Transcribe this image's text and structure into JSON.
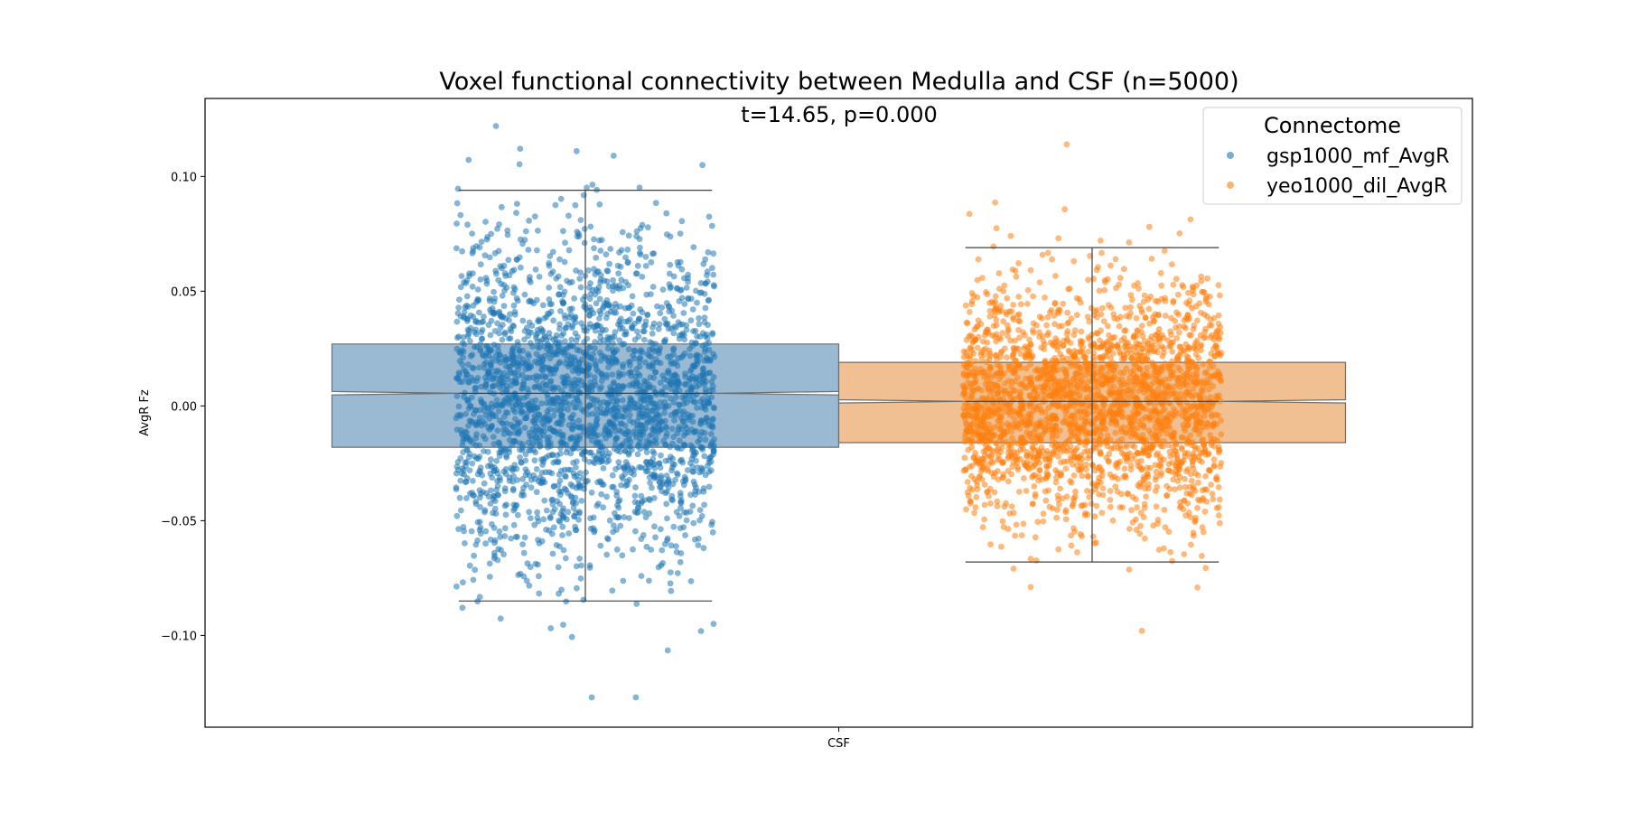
{
  "chart_data": {
    "type": "box",
    "title": "Voxel functional connectivity between Medulla and CSF (n=5000)",
    "subtitle": "t=14.65, p=0.000",
    "xlabel": "",
    "ylabel": "AvgR Fz",
    "categories": [
      "CSF"
    ],
    "ylim": [
      -0.14,
      0.134
    ],
    "yticks": [
      -0.1,
      -0.05,
      0.0,
      0.05,
      0.1
    ],
    "ytick_labels": [
      "−0.10",
      "−0.05",
      "0.00",
      "0.05",
      "0.10"
    ],
    "grid": false,
    "notched": true,
    "legend": {
      "title": "Connectome",
      "position": "top-right"
    },
    "series": [
      {
        "name": "gsp1000_mf_AvgR",
        "color": "#1f77b4",
        "box_color": "#9ab9d3",
        "stats": {
          "q1": -0.018,
          "median": 0.0055,
          "q3": 0.027,
          "notch_low": 0.0048,
          "notch_high": 0.0063,
          "whisker_low": -0.085,
          "whisker_high": 0.094
        },
        "points": {
          "n": 2500,
          "mean": 0.004,
          "sd": 0.034,
          "min": -0.127,
          "max": 0.122
        }
      },
      {
        "name": "yeo1000_dil_AvgR",
        "color": "#ff7f0e",
        "box_color": "#f0c092",
        "stats": {
          "q1": -0.016,
          "median": 0.002,
          "q3": 0.019,
          "notch_low": 0.0013,
          "notch_high": 0.0027,
          "whisker_low": -0.068,
          "whisker_high": 0.069
        },
        "points": {
          "n": 2500,
          "mean": 0.001,
          "sd": 0.026,
          "min": -0.098,
          "max": 0.114
        }
      }
    ]
  }
}
